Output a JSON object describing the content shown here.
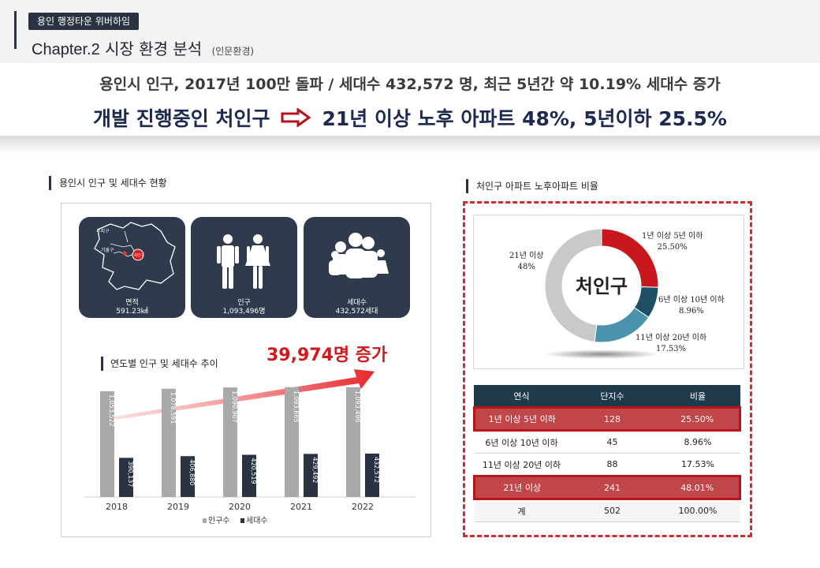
{
  "header": {
    "tag": "용인 행정타운 위버하임",
    "chapter": "Chapter.2",
    "title": "시장 환경 분석",
    "subtitle": "(인문환경)"
  },
  "headline": {
    "line1": "용인시 인구, 2017년 100만 돌파 / 세대수 432,572 명, 최근 5년간 약 10.19% 세대수 증가",
    "line2_left": "개발 진행중인 처인구",
    "line2_right": "21년 이상 노후 아파트 48%, 5년이하 25.5%"
  },
  "left_section": {
    "title": "용인시 인구 및 세대수 현황",
    "cards": [
      {
        "icon": "map-icon",
        "label": "면적",
        "value": "591.23㎢"
      },
      {
        "icon": "people-icon",
        "label": "인구",
        "value": "1,093,496명"
      },
      {
        "icon": "family-icon",
        "label": "세대수",
        "value": "432,572세대"
      }
    ],
    "map_labels": [
      "수지구",
      "기흥구",
      "처인구"
    ],
    "chart_title": "연도별 인구 및 세대수 추이",
    "growth_label": "39,974명 증가"
  },
  "chart_data": {
    "type": "bar",
    "categories": [
      "2018",
      "2019",
      "2020",
      "2021",
      "2022"
    ],
    "series": [
      {
        "name": "인구수",
        "values": [
          1053522,
          1078591,
          1090907,
          1093665,
          1093496
        ],
        "labels": [
          "1,053,522",
          "1,078,591",
          "1,090,907",
          "1,093,665",
          "1,093,496"
        ],
        "color": "#a9a9a9"
      },
      {
        "name": "세대수",
        "values": [
          390137,
          406880,
          420519,
          429492,
          432572
        ],
        "labels": [
          "390,137",
          "406,880",
          "420,519",
          "429,492",
          "432,572"
        ],
        "color": "#2b3342"
      }
    ],
    "legend": "bottom",
    "grid": false
  },
  "right_section": {
    "title": "처인구 아파트 노후아파트 비율",
    "donut": {
      "center": "처인구",
      "segments": [
        {
          "label": "1년 이상 5년 이하",
          "value": "25.50%",
          "pct": 25.5,
          "color": "#c8171d"
        },
        {
          "label": "6년 이상 10년 이하",
          "value": "8.96%",
          "pct": 8.96,
          "color": "#1f4f66"
        },
        {
          "label": "11년 이상 20년 이하",
          "value": "17.53%",
          "pct": 17.53,
          "color": "#4a93ad"
        },
        {
          "label": "21년 이상",
          "value": "48%",
          "pct": 48.01,
          "color": "#c9c9c9"
        }
      ]
    },
    "table": {
      "headers": [
        "연식",
        "단지수",
        "비율"
      ],
      "rows": [
        {
          "cells": [
            "1년 이상 5년 이하",
            "128",
            "25.50%"
          ],
          "highlight": true
        },
        {
          "cells": [
            "6년 이상 10년 이하",
            "45",
            "8.96%"
          ],
          "highlight": false
        },
        {
          "cells": [
            "11년 이상 20년 이하",
            "88",
            "17.53%"
          ],
          "highlight": false
        },
        {
          "cells": [
            "21년 이상",
            "241",
            "48.01%"
          ],
          "highlight": true
        },
        {
          "cells": [
            "계",
            "502",
            "100.00%"
          ],
          "highlight": false
        }
      ]
    }
  },
  "colors": {
    "navy": "#2b3342",
    "red": "#d3181c",
    "table_header": "#1f3a4a"
  }
}
